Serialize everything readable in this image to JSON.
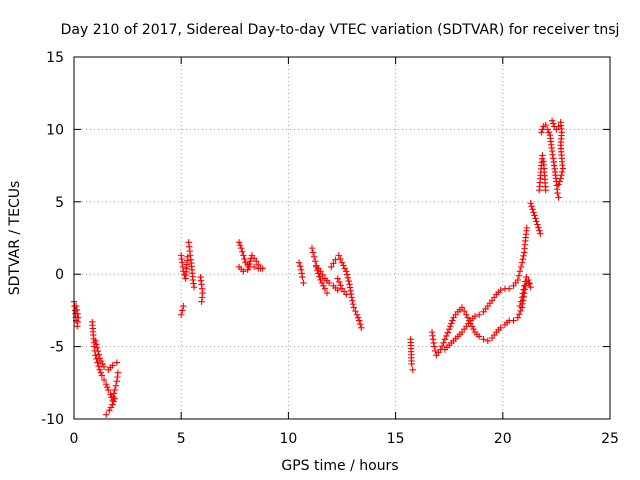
{
  "chart_data": {
    "type": "scatter",
    "title": "Day 210 of 2017, Sidereal Day-to-day VTEC variation (SDTVAR) for receiver tnsj",
    "xlabel": "GPS time / hours",
    "ylabel": "SDTVAR / TECUs",
    "xlim": [
      0,
      25
    ],
    "ylim": [
      -10,
      15
    ],
    "xticks": [
      "0",
      "5",
      "10",
      "15",
      "20",
      "25"
    ],
    "yticks": [
      "-10",
      "-5",
      "0",
      "5",
      "10",
      "15"
    ],
    "grid": true,
    "marker": "plus",
    "color": "#ff0000",
    "series": [
      {
        "name": "SDTVAR",
        "arcs": [
          [
            [
              0.0,
              -1.9
            ],
            [
              0.05,
              -2.5
            ],
            [
              0.1,
              -3.2
            ],
            [
              0.15,
              -3.6
            ],
            [
              0.2,
              -3.0
            ],
            [
              0.1,
              -2.2
            ]
          ],
          [
            [
              0.85,
              -3.3
            ],
            [
              0.9,
              -4.2
            ],
            [
              0.95,
              -5.0
            ],
            [
              1.0,
              -5.6
            ],
            [
              1.1,
              -6.1
            ],
            [
              1.2,
              -6.6
            ],
            [
              1.3,
              -7.0
            ],
            [
              1.4,
              -7.3
            ],
            [
              1.5,
              -7.6
            ],
            [
              1.6,
              -8.0
            ],
            [
              1.7,
              -8.3
            ],
            [
              1.8,
              -8.7
            ],
            [
              1.9,
              -8.0
            ],
            [
              2.0,
              -7.4
            ],
            [
              2.05,
              -6.8
            ]
          ],
          [
            [
              1.0,
              -4.6
            ],
            [
              1.2,
              -5.8
            ],
            [
              1.4,
              -6.4
            ],
            [
              1.6,
              -6.6
            ],
            [
              1.8,
              -6.3
            ],
            [
              2.0,
              -6.1
            ]
          ],
          [
            [
              1.5,
              -9.7
            ],
            [
              1.65,
              -9.4
            ],
            [
              1.8,
              -9.0
            ],
            [
              1.9,
              -8.6
            ]
          ],
          [
            [
              5.0,
              -2.8
            ],
            [
              5.05,
              -2.5
            ],
            [
              5.1,
              -2.2
            ]
          ],
          [
            [
              5.0,
              1.3
            ],
            [
              5.05,
              0.8
            ],
            [
              5.1,
              0.2
            ],
            [
              5.2,
              -0.3
            ],
            [
              5.25,
              0.4
            ],
            [
              5.3,
              1.2
            ]
          ],
          [
            [
              5.35,
              2.2
            ],
            [
              5.4,
              1.6
            ],
            [
              5.45,
              1.0
            ],
            [
              5.5,
              0.3
            ],
            [
              5.55,
              -0.4
            ],
            [
              5.6,
              -0.9
            ]
          ],
          [
            [
              5.9,
              -0.2
            ],
            [
              5.95,
              -0.7
            ],
            [
              6.0,
              -1.3
            ],
            [
              5.95,
              -1.9
            ]
          ],
          [
            [
              7.7,
              2.2
            ],
            [
              7.8,
              1.8
            ],
            [
              7.9,
              1.3
            ],
            [
              8.0,
              0.8
            ],
            [
              8.2,
              0.5
            ],
            [
              8.4,
              0.5
            ],
            [
              8.6,
              0.4
            ],
            [
              8.8,
              0.4
            ]
          ],
          [
            [
              7.7,
              0.5
            ],
            [
              7.9,
              0.2
            ],
            [
              8.1,
              0.3
            ],
            [
              8.3,
              1.3
            ],
            [
              8.5,
              0.9
            ],
            [
              8.7,
              0.4
            ]
          ],
          [
            [
              10.5,
              0.8
            ],
            [
              10.6,
              0.3
            ],
            [
              10.65,
              -0.2
            ],
            [
              10.7,
              -0.6
            ]
          ],
          [
            [
              11.1,
              1.8
            ],
            [
              11.2,
              1.2
            ],
            [
              11.3,
              0.6
            ],
            [
              11.5,
              0.2
            ],
            [
              11.7,
              -0.3
            ],
            [
              11.9,
              -0.6
            ],
            [
              12.1,
              -0.8
            ],
            [
              12.3,
              -1.1
            ]
          ],
          [
            [
              11.3,
              0.5
            ],
            [
              11.5,
              -0.4
            ],
            [
              11.7,
              -1.0
            ],
            [
              11.8,
              -1.3
            ]
          ],
          [
            [
              12.0,
              0.5
            ],
            [
              12.2,
              1.0
            ],
            [
              12.35,
              1.3
            ],
            [
              12.5,
              0.8
            ],
            [
              12.7,
              0.2
            ],
            [
              12.85,
              -0.7
            ],
            [
              12.95,
              -1.6
            ],
            [
              13.05,
              -2.3
            ],
            [
              13.2,
              -2.8
            ],
            [
              13.3,
              -3.2
            ],
            [
              13.4,
              -3.7
            ]
          ],
          [
            [
              12.3,
              -0.3
            ],
            [
              12.5,
              -1.0
            ],
            [
              12.7,
              -1.4
            ]
          ],
          [
            [
              15.7,
              -4.5
            ],
            [
              15.75,
              -6.2
            ],
            [
              15.8,
              -6.6
            ]
          ],
          [
            [
              16.7,
              -4.0
            ],
            [
              16.8,
              -5.0
            ],
            [
              16.9,
              -5.6
            ],
            [
              17.1,
              -5.2
            ],
            [
              17.3,
              -4.5
            ],
            [
              17.5,
              -3.8
            ],
            [
              17.7,
              -3.0
            ],
            [
              17.9,
              -2.6
            ],
            [
              18.1,
              -2.3
            ],
            [
              18.3,
              -2.8
            ],
            [
              18.5,
              -3.4
            ],
            [
              18.7,
              -4.0
            ],
            [
              18.9,
              -4.3
            ],
            [
              19.1,
              -4.5
            ],
            [
              19.3,
              -4.6
            ],
            [
              19.5,
              -4.4
            ],
            [
              19.7,
              -4.0
            ],
            [
              19.9,
              -3.7
            ],
            [
              20.1,
              -3.5
            ],
            [
              20.3,
              -3.2
            ],
            [
              20.5,
              -3.2
            ],
            [
              20.7,
              -3.0
            ],
            [
              20.9,
              -2.3
            ],
            [
              21.0,
              -1.3
            ],
            [
              21.1,
              -0.5
            ],
            [
              21.2,
              -0.6
            ]
          ],
          [
            [
              17.3,
              -5.2
            ],
            [
              17.5,
              -4.9
            ],
            [
              17.7,
              -4.6
            ],
            [
              17.9,
              -4.3
            ],
            [
              18.1,
              -4.0
            ],
            [
              18.3,
              -3.6
            ],
            [
              18.5,
              -3.2
            ],
            [
              18.7,
              -2.9
            ],
            [
              18.9,
              -2.8
            ],
            [
              19.1,
              -2.6
            ],
            [
              19.3,
              -2.2
            ],
            [
              19.5,
              -1.8
            ],
            [
              19.7,
              -1.4
            ],
            [
              19.9,
              -1.1
            ],
            [
              20.1,
              -1.0
            ],
            [
              20.3,
              -1.0
            ],
            [
              20.5,
              -0.8
            ],
            [
              20.7,
              -0.4
            ],
            [
              20.8,
              0.2
            ],
            [
              20.9,
              0.8
            ],
            [
              21.0,
              1.5
            ],
            [
              21.05,
              2.3
            ],
            [
              21.1,
              3.0
            ],
            [
              21.12,
              3.2
            ]
          ],
          [
            [
              20.8,
              -2.2
            ],
            [
              20.9,
              -1.6
            ],
            [
              21.0,
              -0.8
            ],
            [
              21.1,
              -0.2
            ],
            [
              21.2,
              -0.4
            ],
            [
              21.3,
              -0.9
            ]
          ],
          [
            [
              21.3,
              4.9
            ],
            [
              21.75,
              2.8
            ]
          ],
          [
            [
              21.7,
              5.8
            ],
            [
              21.75,
              6.6
            ],
            [
              21.8,
              7.5
            ],
            [
              21.85,
              8.2
            ],
            [
              21.9,
              7.8
            ],
            [
              21.95,
              6.8
            ],
            [
              22.0,
              5.8
            ]
          ],
          [
            [
              21.8,
              9.8
            ],
            [
              21.9,
              10.2
            ],
            [
              22.0,
              10.3
            ],
            [
              22.1,
              10.0
            ],
            [
              22.2,
              9.6
            ],
            [
              22.3,
              8.5
            ],
            [
              22.4,
              7.5
            ],
            [
              22.5,
              6.4
            ],
            [
              22.55,
              5.6
            ],
            [
              22.6,
              5.3
            ]
          ],
          [
            [
              22.3,
              10.6
            ],
            [
              22.4,
              10.2
            ],
            [
              22.5,
              10.0
            ],
            [
              22.6,
              10.2
            ],
            [
              22.7,
              10.5
            ],
            [
              22.75,
              9.8
            ],
            [
              22.7,
              8.9
            ],
            [
              22.75,
              8.0
            ],
            [
              22.8,
              7.3
            ],
            [
              22.7,
              6.6
            ],
            [
              22.6,
              6.2
            ]
          ]
        ]
      }
    ]
  }
}
